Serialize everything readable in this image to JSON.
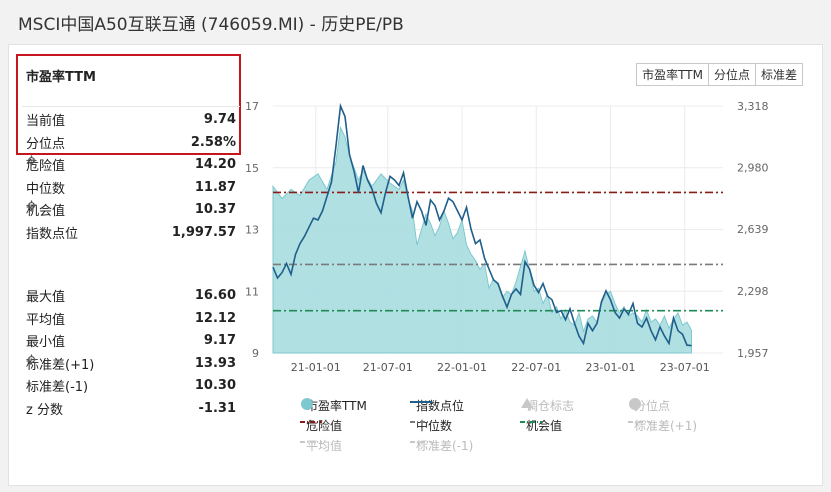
{
  "page_title": "MSCI中国A50互联互通 (746059.MI) - 历史PE/PB",
  "panel": {
    "heading": "市盈率TTM",
    "stats": [
      {
        "label": "当前值",
        "value": "9.74"
      },
      {
        "label": "分位点",
        "value": "2.58%"
      },
      {
        "label": "危险值",
        "value": "14.20",
        "icon": "gear-icon"
      },
      {
        "label": "中位数",
        "value": "11.87"
      },
      {
        "label": "机会值",
        "value": "10.37",
        "icon": "gear-icon"
      },
      {
        "label": "指数点位",
        "value": "1,997.57"
      }
    ],
    "stats2": [
      {
        "label": "最大值",
        "value": "16.60"
      },
      {
        "label": "平均值",
        "value": "12.12"
      },
      {
        "label": "最小值",
        "value": "9.17"
      },
      {
        "label": "标准差(+1)",
        "value": "13.93",
        "icon": "gear-icon"
      },
      {
        "label": "标准差(-1)",
        "value": "10.30"
      },
      {
        "label": "z 分数",
        "value": "-1.31"
      }
    ]
  },
  "buttons": [
    "市盈率TTM",
    "分位点",
    "标准差"
  ],
  "legend": [
    {
      "label": "市盈率TTM",
      "kind": "dot",
      "color": "#7ec8cf"
    },
    {
      "label": "指数点位",
      "kind": "line",
      "color": "#1f5f8b"
    },
    {
      "label": "调仓标志",
      "kind": "triangle",
      "color": "#c8c8c8"
    },
    {
      "label": "分位点",
      "kind": "dot",
      "color": "#c8c8c8"
    },
    {
      "label": "危险值",
      "kind": "dash",
      "color": "#8b1a1a"
    },
    {
      "label": "中位数",
      "kind": "dash",
      "color": "#7a7a7a"
    },
    {
      "label": "机会值",
      "kind": "dash",
      "color": "#1e8a55"
    },
    {
      "label": "标准差(+1)",
      "kind": "dash",
      "color": "#c8c8c8"
    },
    {
      "label": "平均值",
      "kind": "dash",
      "color": "#c8c8c8"
    },
    {
      "label": "标准差(-1)",
      "kind": "dash",
      "color": "#c8c8c8"
    }
  ],
  "chart_data": {
    "type": "area",
    "x_ticks": [
      "21-01-01",
      "21-07-01",
      "22-01-01",
      "22-07-01",
      "23-01-01",
      "23-07-01"
    ],
    "y_left_ticks": [
      "9",
      "11",
      "13",
      "15",
      "17"
    ],
    "y_left_range": [
      9,
      17
    ],
    "y_right_ticks": [
      "1,957",
      "2,298",
      "2,639",
      "2,980",
      "3,318"
    ],
    "y_right_range": [
      1957,
      3318
    ],
    "x_range": [
      0,
      100
    ],
    "x_tick_positions": [
      9.5,
      25.5,
      42,
      58.5,
      75,
      91.5
    ],
    "series": [
      {
        "name": "市盈率TTM",
        "axis": "left",
        "points": [
          [
            0,
            14.4
          ],
          [
            2,
            14.0
          ],
          [
            4,
            14.3
          ],
          [
            6,
            14.1
          ],
          [
            8,
            14.6
          ],
          [
            10,
            14.8
          ],
          [
            12,
            14.3
          ],
          [
            14,
            15.2
          ],
          [
            15,
            16.3
          ],
          [
            16,
            16.0
          ],
          [
            17,
            15.4
          ],
          [
            18,
            15.0
          ],
          [
            19,
            14.6
          ],
          [
            20,
            14.9
          ],
          [
            22,
            14.4
          ],
          [
            24,
            14.8
          ],
          [
            26,
            14.5
          ],
          [
            28,
            14.3
          ],
          [
            29,
            14.6
          ],
          [
            30,
            14.0
          ],
          [
            31,
            13.6
          ],
          [
            32,
            12.5
          ],
          [
            33,
            13.0
          ],
          [
            34,
            13.5
          ],
          [
            35,
            13.2
          ],
          [
            36,
            12.8
          ],
          [
            37,
            13.1
          ],
          [
            38,
            13.6
          ],
          [
            39,
            13.2
          ],
          [
            40,
            12.7
          ],
          [
            41,
            12.9
          ],
          [
            42,
            13.3
          ],
          [
            43,
            12.5
          ],
          [
            44,
            12.2
          ],
          [
            45,
            12.0
          ],
          [
            46,
            11.7
          ],
          [
            47,
            11.9
          ],
          [
            48,
            11.1
          ],
          [
            49,
            11.4
          ],
          [
            50,
            11.2
          ],
          [
            51,
            10.8
          ],
          [
            52,
            11.0
          ],
          [
            53,
            10.9
          ],
          [
            54,
            11.3
          ],
          [
            55,
            11.8
          ],
          [
            56,
            12.3
          ],
          [
            57,
            11.7
          ],
          [
            58,
            11.0
          ],
          [
            59,
            11.1
          ],
          [
            60,
            10.6
          ],
          [
            61,
            10.9
          ],
          [
            62,
            10.3
          ],
          [
            63,
            10.5
          ],
          [
            64,
            10.1
          ],
          [
            65,
            10.4
          ],
          [
            66,
            10.0
          ],
          [
            67,
            9.9
          ],
          [
            68,
            10.3
          ],
          [
            69,
            9.7
          ],
          [
            70,
            10.1
          ],
          [
            71,
            10.2
          ],
          [
            72,
            10.0
          ],
          [
            73,
            10.6
          ],
          [
            74,
            10.9
          ],
          [
            75,
            11.0
          ],
          [
            76,
            10.6
          ],
          [
            77,
            10.3
          ],
          [
            78,
            10.5
          ],
          [
            79,
            10.2
          ],
          [
            80,
            10.3
          ],
          [
            81,
            10.2
          ],
          [
            82,
            10.0
          ],
          [
            83,
            10.4
          ],
          [
            84,
            10.0
          ],
          [
            85,
            10.1
          ],
          [
            86,
            9.9
          ],
          [
            87,
            10.2
          ],
          [
            88,
            9.8
          ],
          [
            89,
            10.1
          ],
          [
            90,
            10.3
          ],
          [
            91,
            9.9
          ],
          [
            92,
            10.0
          ],
          [
            93,
            9.74
          ]
        ]
      },
      {
        "name": "指数点位",
        "axis": "right",
        "points": [
          [
            0,
            2430
          ],
          [
            1,
            2370
          ],
          [
            2,
            2400
          ],
          [
            3,
            2450
          ],
          [
            4,
            2390
          ],
          [
            5,
            2500
          ],
          [
            6,
            2560
          ],
          [
            7,
            2600
          ],
          [
            8,
            2650
          ],
          [
            9,
            2700
          ],
          [
            10,
            2690
          ],
          [
            11,
            2740
          ],
          [
            12,
            2820
          ],
          [
            13,
            2900
          ],
          [
            14,
            3100
          ],
          [
            15,
            3318
          ],
          [
            16,
            3260
          ],
          [
            17,
            3050
          ],
          [
            18,
            2960
          ],
          [
            19,
            2840
          ],
          [
            20,
            2990
          ],
          [
            21,
            2910
          ],
          [
            22,
            2860
          ],
          [
            23,
            2780
          ],
          [
            24,
            2730
          ],
          [
            25,
            2840
          ],
          [
            26,
            2930
          ],
          [
            27,
            2910
          ],
          [
            28,
            2880
          ],
          [
            29,
            2950
          ],
          [
            30,
            2820
          ],
          [
            31,
            2700
          ],
          [
            32,
            2790
          ],
          [
            33,
            2740
          ],
          [
            34,
            2660
          ],
          [
            35,
            2800
          ],
          [
            36,
            2770
          ],
          [
            37,
            2690
          ],
          [
            38,
            2740
          ],
          [
            39,
            2810
          ],
          [
            40,
            2790
          ],
          [
            41,
            2740
          ],
          [
            42,
            2690
          ],
          [
            43,
            2760
          ],
          [
            44,
            2640
          ],
          [
            45,
            2560
          ],
          [
            46,
            2580
          ],
          [
            47,
            2480
          ],
          [
            48,
            2420
          ],
          [
            49,
            2360
          ],
          [
            50,
            2340
          ],
          [
            51,
            2270
          ],
          [
            52,
            2210
          ],
          [
            53,
            2280
          ],
          [
            54,
            2310
          ],
          [
            55,
            2280
          ],
          [
            56,
            2460
          ],
          [
            57,
            2420
          ],
          [
            58,
            2330
          ],
          [
            59,
            2290
          ],
          [
            60,
            2340
          ],
          [
            61,
            2270
          ],
          [
            62,
            2250
          ],
          [
            63,
            2180
          ],
          [
            64,
            2190
          ],
          [
            65,
            2140
          ],
          [
            66,
            2200
          ],
          [
            67,
            2120
          ],
          [
            68,
            2050
          ],
          [
            69,
            2010
          ],
          [
            70,
            2120
          ],
          [
            71,
            2080
          ],
          [
            72,
            2120
          ],
          [
            73,
            2240
          ],
          [
            74,
            2300
          ],
          [
            75,
            2250
          ],
          [
            76,
            2180
          ],
          [
            77,
            2150
          ],
          [
            78,
            2200
          ],
          [
            79,
            2170
          ],
          [
            80,
            2230
          ],
          [
            81,
            2120
          ],
          [
            82,
            2100
          ],
          [
            83,
            2150
          ],
          [
            84,
            2080
          ],
          [
            85,
            2030
          ],
          [
            86,
            2100
          ],
          [
            87,
            2050
          ],
          [
            88,
            2010
          ],
          [
            89,
            2150
          ],
          [
            90,
            2080
          ],
          [
            91,
            2060
          ],
          [
            92,
            2000
          ],
          [
            93,
            1997.57
          ]
        ]
      }
    ],
    "reference_lines": [
      {
        "name": "危险值",
        "value": 14.2,
        "color": "#8b1a1a"
      },
      {
        "name": "中位数",
        "value": 11.87,
        "color": "#7a7a7a"
      },
      {
        "name": "机会值",
        "value": 10.37,
        "color": "#1e8a55"
      }
    ],
    "grid": true
  }
}
